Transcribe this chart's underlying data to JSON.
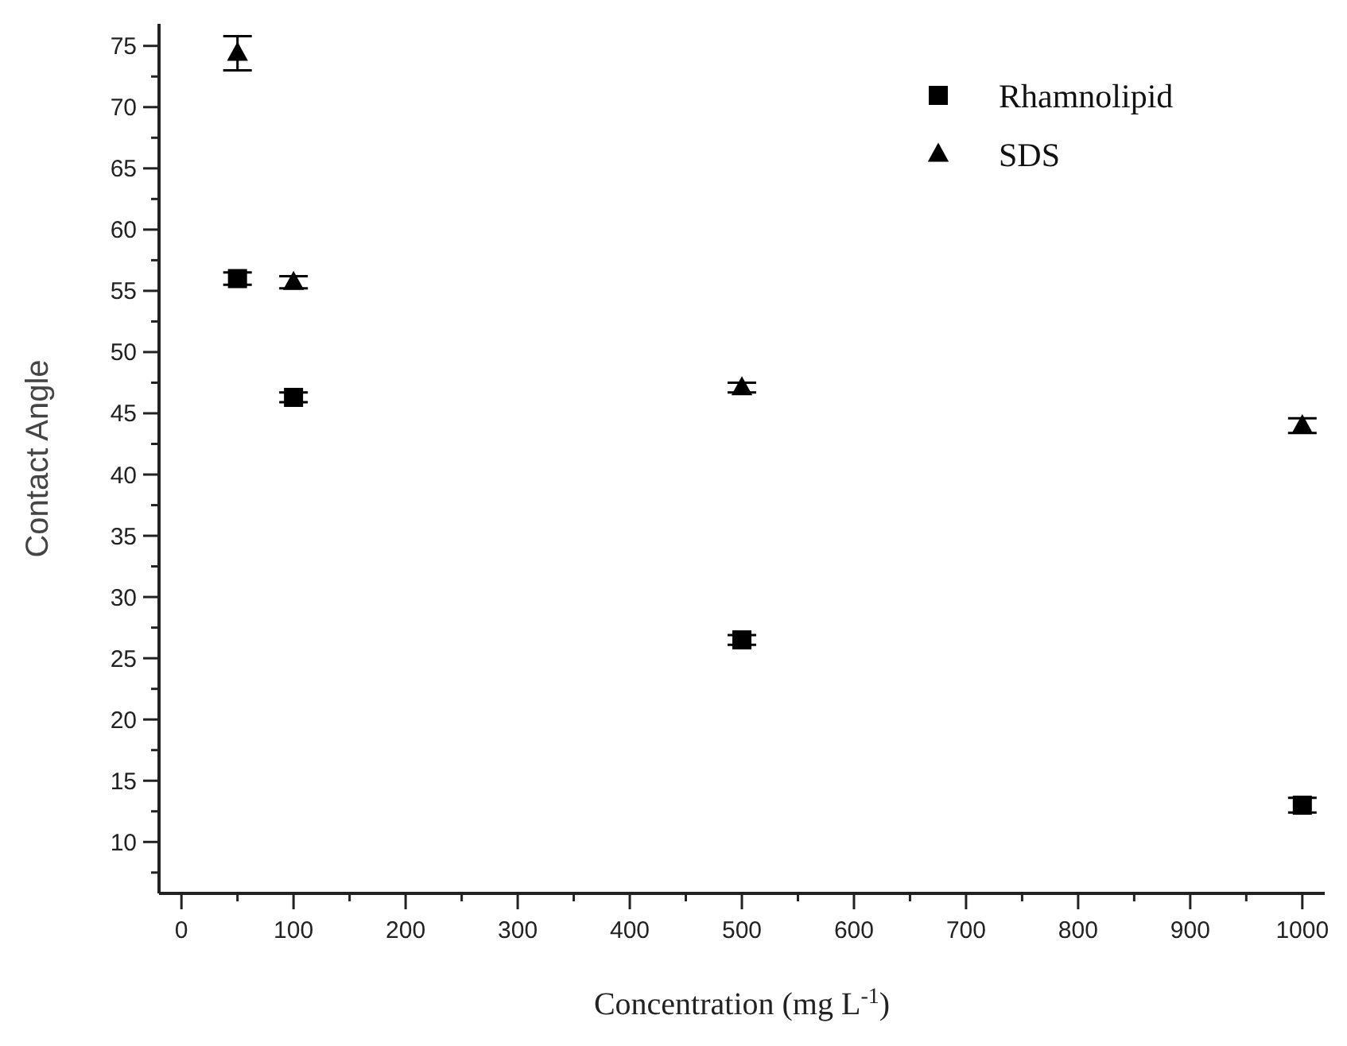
{
  "chart_data": {
    "type": "scatter",
    "xlabel": "Concentration (mg L$^{-1}$)",
    "ylabel": "Contact Angle",
    "xlim": [
      -20,
      1020
    ],
    "xticks": [
      0,
      {
        "value": 50,
        "label": null
      },
      100,
      {
        "value": 150,
        "label": null
      },
      200,
      {
        "value": 250,
        "label": null
      },
      300,
      {
        "value": 350,
        "label": null
      },
      400,
      {
        "value": 450,
        "label": null
      },
      500,
      {
        "value": 550,
        "label": null
      },
      600,
      {
        "value": 650,
        "label": null
      },
      700,
      {
        "value": 750,
        "label": null
      },
      800,
      {
        "value": 850,
        "label": null
      },
      900,
      {
        "value": 950,
        "label": null
      },
      1000
    ],
    "ylim": [
      5.8,
      76.8
    ],
    "yticks": [
      {
        "value": 7.5,
        "label": null
      },
      10,
      {
        "value": 12.5,
        "label": null
      },
      15,
      {
        "value": 17.5,
        "label": null
      },
      20,
      {
        "value": 22.5,
        "label": null
      },
      25,
      {
        "value": 27.5,
        "label": null
      },
      30,
      {
        "value": 32.5,
        "label": null
      },
      35,
      {
        "value": 37.5,
        "label": null
      },
      40,
      {
        "value": 42.5,
        "label": null
      },
      45,
      {
        "value": 47.5,
        "label": null
      },
      50,
      {
        "value": 52.5,
        "label": null
      },
      55,
      {
        "value": 57.5,
        "label": null
      },
      60,
      {
        "value": 62.5,
        "label": null
      },
      65,
      {
        "value": 67.5,
        "label": null
      },
      70,
      {
        "value": 72.5,
        "label": null
      },
      75
    ],
    "legend": "top right",
    "grid": false,
    "series": [
      {
        "name": "Rhamnolipid",
        "color": "#000000",
        "marker": "square",
        "x": [
          50,
          100,
          500,
          1000
        ],
        "values": [
          56,
          46.3,
          26.5,
          13
        ],
        "errors": [
          0.5,
          0.4,
          0.4,
          0.6
        ]
      },
      {
        "name": "SDS",
        "color": "#000000",
        "marker": "triangle",
        "x": [
          50,
          100,
          500,
          1000
        ],
        "values": [
          74.4,
          55.7,
          47.1,
          44
        ],
        "errors": [
          1.4,
          0.5,
          0.4,
          0.6
        ]
      }
    ]
  }
}
